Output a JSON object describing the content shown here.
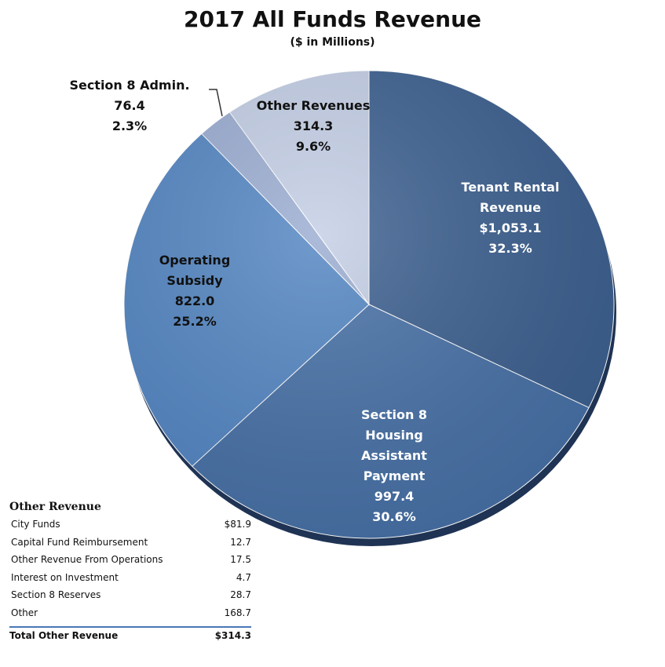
{
  "chart_data": {
    "type": "pie",
    "title": "2017 All Funds Revenue",
    "subtitle": "($ in Millions)",
    "slices": [
      {
        "name": "Tenant Rental Revenue",
        "label_lines": [
          "Tenant Rental",
          "Revenue"
        ],
        "value_text": "$1,053.1",
        "value": 1053.1,
        "percent_text": "32.3%",
        "percent": 32.3,
        "color": "#3b5f8f"
      },
      {
        "name": "Section 8 Housing Assistant Payment",
        "label_lines": [
          "Section 8",
          "Housing",
          "Assistant",
          "Payment"
        ],
        "value_text": "997.4",
        "value": 997.4,
        "percent_text": "30.6%",
        "percent": 30.6,
        "color": "#4670a6"
      },
      {
        "name": "Operating Subsidy",
        "label_lines": [
          "Operating",
          "Subsidy"
        ],
        "value_text": "822.0",
        "value": 822.0,
        "percent_text": "25.2%",
        "percent": 25.2,
        "color": "#5285c2"
      },
      {
        "name": "Section 8 Admin.",
        "label_lines": [
          "Section 8 Admin."
        ],
        "value_text": "76.4",
        "value": 76.4,
        "percent_text": "2.3%",
        "percent": 2.3,
        "color": "#9aacd1"
      },
      {
        "name": "Other Revenues",
        "label_lines": [
          "Other Revenues"
        ],
        "value_text": "314.3",
        "value": 314.3,
        "percent_text": "9.6%",
        "percent": 9.6,
        "color": "#c3cee5"
      }
    ],
    "colors": {
      "shadow": "#1f3354"
    }
  },
  "other_revenue": {
    "title": "Other Revenue",
    "rows": [
      {
        "name": "City Funds",
        "value": "$81.9"
      },
      {
        "name": "Capital Fund Reimbursement",
        "value": "12.7"
      },
      {
        "name": "Other Revenue From Operations",
        "value": "17.5"
      },
      {
        "name": "Interest on Investment",
        "value": "4.7"
      },
      {
        "name": "Section 8 Reserves",
        "value": "28.7"
      },
      {
        "name": "Other",
        "value": "168.7"
      }
    ],
    "total_label": "Total Other Revenue",
    "total_value": "$314.3"
  }
}
